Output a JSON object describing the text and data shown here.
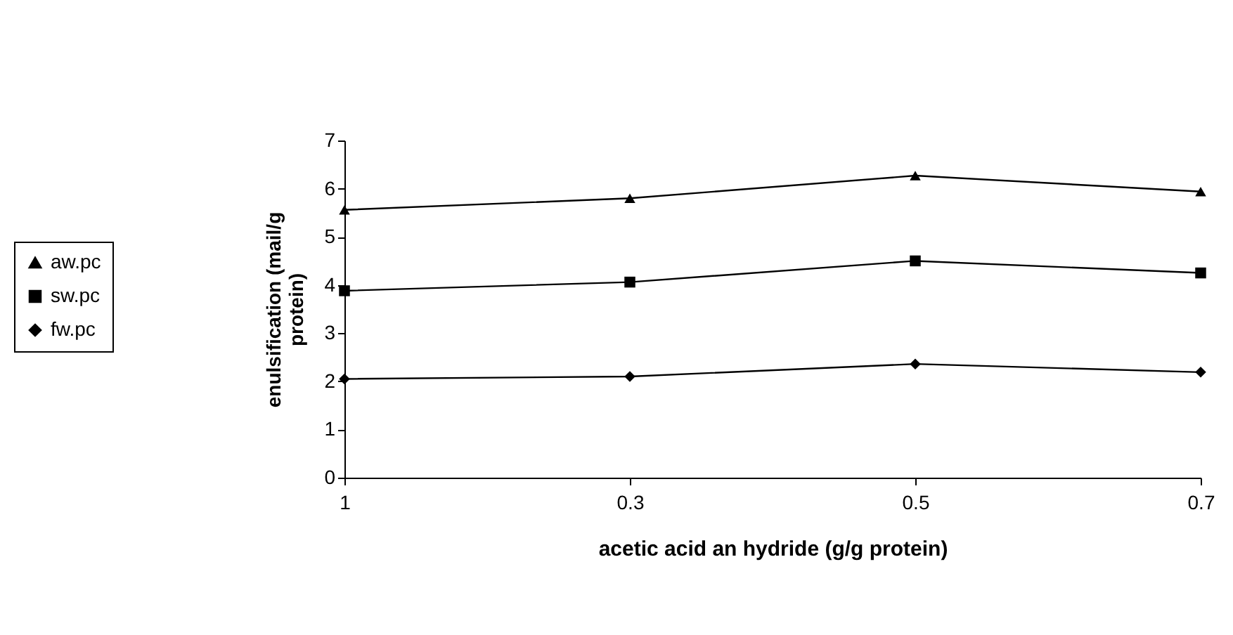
{
  "chart_data": {
    "type": "line",
    "xlabel": "acetic acid an hydride (g/g protein)",
    "ylabel": "enulsification (mail/g protein)",
    "categories": [
      "1",
      "0.3",
      "0.5",
      "0.7"
    ],
    "ylim": [
      0,
      7
    ],
    "yticks": [
      0,
      1,
      2,
      3,
      4,
      5,
      6,
      7
    ],
    "grid": false,
    "legend": "left",
    "line_style": "solid",
    "series": [
      {
        "name": "aw.pc",
        "color": "#000000",
        "marker": "triangle",
        "values": [
          5.56,
          5.8,
          6.27,
          5.94
        ]
      },
      {
        "name": "sw.pc",
        "color": "#000000",
        "marker": "square",
        "values": [
          3.88,
          4.06,
          4.5,
          4.25
        ]
      },
      {
        "name": "fw.pc",
        "color": "#000000",
        "marker": "diamond",
        "values": [
          2.05,
          2.1,
          2.36,
          2.19
        ]
      }
    ]
  }
}
